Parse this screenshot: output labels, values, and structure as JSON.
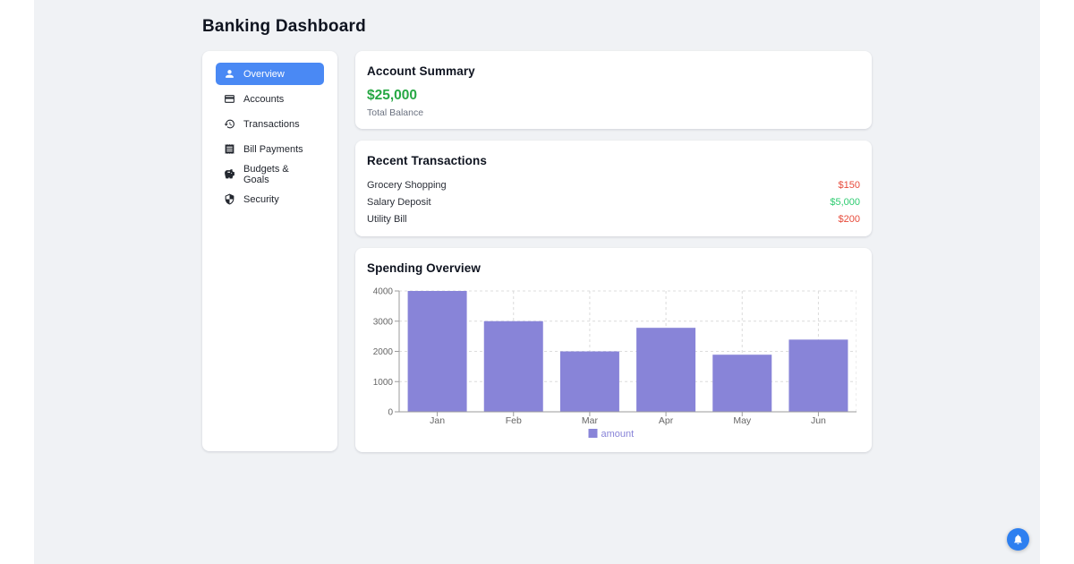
{
  "header": {
    "title": "Banking Dashboard"
  },
  "colors": {
    "page-bg": "#f0f2f5",
    "card-bg": "#ffffff",
    "accent-blue": "#4a89f4",
    "bell-blue": "#2d7ff0",
    "text-muted": "#6b7280",
    "balance-green": "#27a844",
    "positive-green": "#2ecc71",
    "negative-red": "#e74c3c",
    "bar-purple": "#8884d8"
  },
  "sidebar": {
    "items": [
      {
        "label": "Overview",
        "icon": "person",
        "active": true
      },
      {
        "label": "Accounts",
        "icon": "credit-card",
        "active": false
      },
      {
        "label": "Transactions",
        "icon": "history",
        "active": false
      },
      {
        "label": "Bill Payments",
        "icon": "receipt",
        "active": false
      },
      {
        "label": "Budgets & Goals",
        "icon": "piggy-bank",
        "active": false
      },
      {
        "label": "Security",
        "icon": "shield",
        "active": false
      }
    ]
  },
  "account_summary": {
    "title": "Account Summary",
    "balance": "$25,000",
    "balance_label": "Total Balance"
  },
  "transactions": {
    "title": "Recent Transactions",
    "rows": [
      {
        "name": "Grocery Shopping",
        "amount": "$150",
        "direction": "debit"
      },
      {
        "name": "Salary Deposit",
        "amount": "$5,000",
        "direction": "credit"
      },
      {
        "name": "Utility Bill",
        "amount": "$200",
        "direction": "debit"
      }
    ]
  },
  "chart_data": {
    "type": "bar",
    "title": "Spending Overview",
    "categories": [
      "Jan",
      "Feb",
      "Mar",
      "Apr",
      "May",
      "Jun"
    ],
    "series": [
      {
        "name": "amount",
        "values": [
          4000,
          3000,
          2000,
          2780,
          1890,
          2390
        ]
      }
    ],
    "xlabel": "",
    "ylabel": "",
    "ylim": [
      0,
      4000
    ],
    "yticks": [
      0,
      1000,
      2000,
      3000,
      4000
    ],
    "grid": "dashed",
    "legend_position": "bottom",
    "bar_color": "#8884d8"
  },
  "notifications": {
    "icon": "bell"
  }
}
